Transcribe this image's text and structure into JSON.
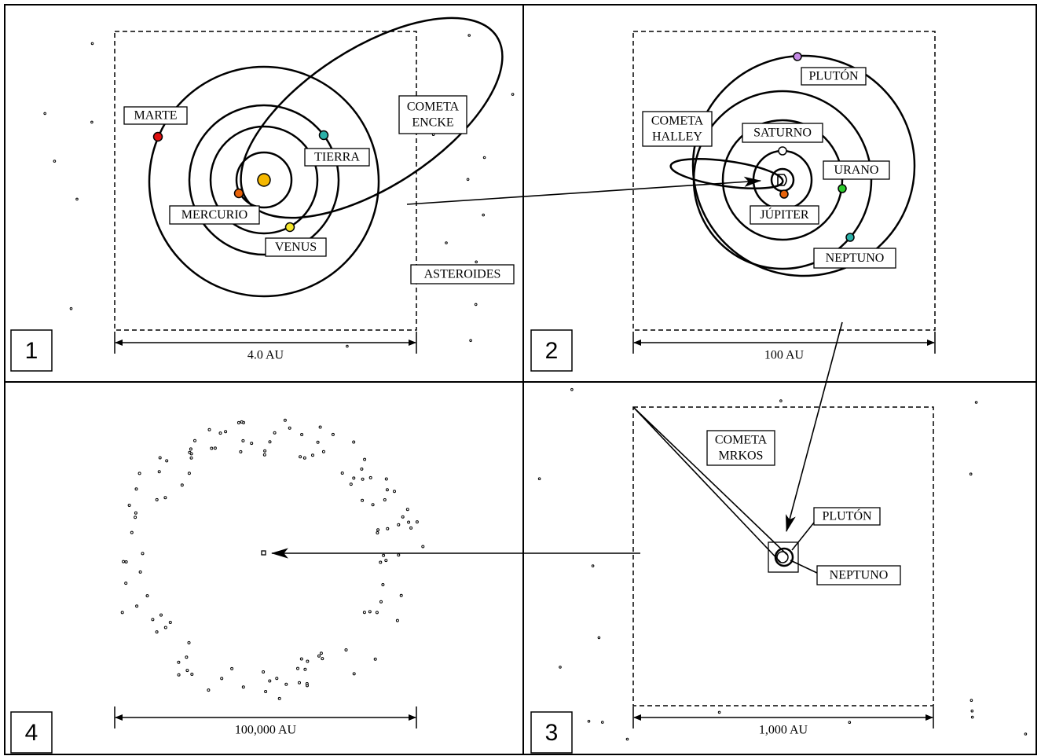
{
  "panels": [
    {
      "number": "1",
      "scale": "4.0 AU",
      "labels": [
        {
          "lines": [
            "MARTE"
          ]
        },
        {
          "lines": [
            "TIERRA"
          ]
        },
        {
          "lines": [
            "MERCURIO"
          ]
        },
        {
          "lines": [
            "VENUS"
          ]
        },
        {
          "lines": [
            "COMETA",
            "ENCKE"
          ]
        },
        {
          "lines": [
            "ASTEROIDES"
          ]
        }
      ]
    },
    {
      "number": "2",
      "scale": "100 AU",
      "labels": [
        {
          "lines": [
            "PLUTÓN"
          ]
        },
        {
          "lines": [
            "COMETA",
            "HALLEY"
          ]
        },
        {
          "lines": [
            "SATURNO"
          ]
        },
        {
          "lines": [
            "URANO"
          ]
        },
        {
          "lines": [
            "JÚPITER"
          ]
        },
        {
          "lines": [
            "NEPTUNO"
          ]
        }
      ]
    },
    {
      "number": "3",
      "scale": "1,000 AU",
      "labels": [
        {
          "lines": [
            "COMETA",
            "MRKOS"
          ]
        },
        {
          "lines": [
            "PLUTÓN"
          ]
        },
        {
          "lines": [
            "NEPTUNO"
          ]
        }
      ]
    },
    {
      "number": "4",
      "scale": "100,000 AU",
      "labels": []
    }
  ]
}
